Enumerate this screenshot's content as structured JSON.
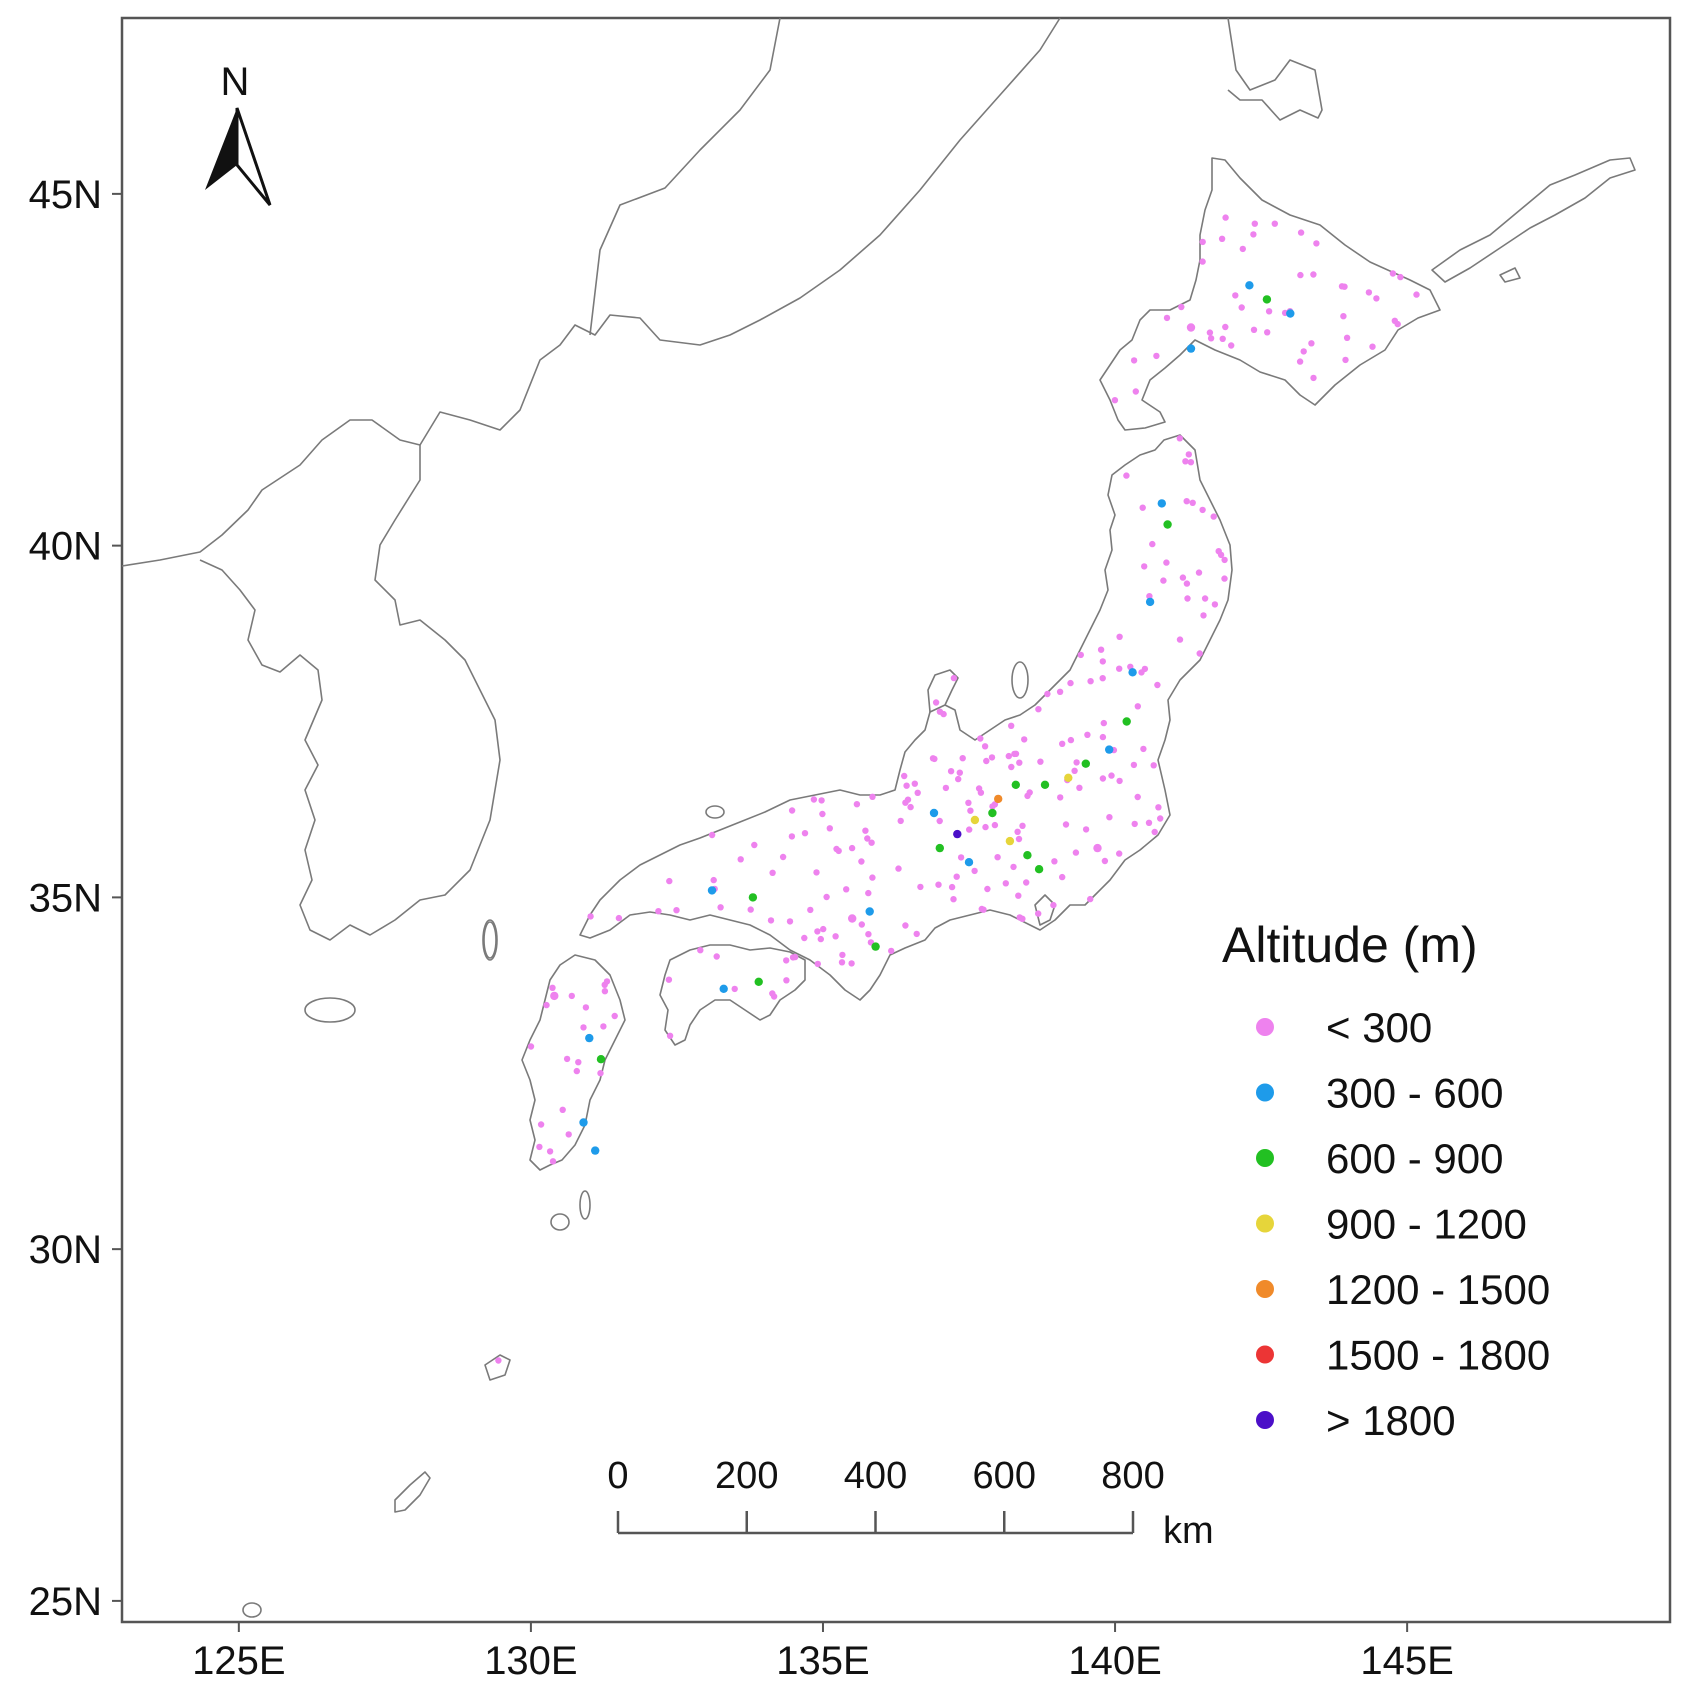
{
  "map": {
    "lon_range": [
      123,
      149.5
    ],
    "lat_range": [
      24.7,
      47.5
    ],
    "x_ticks": [
      {
        "value": 125,
        "label": "125E"
      },
      {
        "value": 130,
        "label": "130E"
      },
      {
        "value": 135,
        "label": "135E"
      },
      {
        "value": 140,
        "label": "140E"
      },
      {
        "value": 145,
        "label": "145E"
      }
    ],
    "y_ticks": [
      {
        "value": 45,
        "label": "45N"
      },
      {
        "value": 40,
        "label": "40N"
      },
      {
        "value": 35,
        "label": "35N"
      },
      {
        "value": 30,
        "label": "30N"
      },
      {
        "value": 25,
        "label": "25N"
      }
    ],
    "north_arrow": {
      "label": "N"
    },
    "scale_bar": {
      "ticks": [
        "0",
        "200",
        "400",
        "600",
        "800"
      ],
      "unit": "km"
    },
    "legend": {
      "title": "Altitude (m)",
      "placement": "right",
      "classes": [
        {
          "label": "< 300",
          "color": "#ee82ee"
        },
        {
          "label": "300 - 600",
          "color": "#1e9bea"
        },
        {
          "label": "600 - 900",
          "color": "#22c022"
        },
        {
          "label": "900 - 1200",
          "color": "#e6d53a"
        },
        {
          "label": "1200 - 1500",
          "color": "#f08a2a"
        },
        {
          "label": "1500 - 1800",
          "color": "#ec3535"
        },
        {
          "label": "> 1800",
          "color": "#4b0fc8"
        }
      ]
    },
    "stations": [
      {
        "lon": 142.3,
        "lat": 43.7,
        "class": 1
      },
      {
        "lon": 142.6,
        "lat": 43.5,
        "class": 2
      },
      {
        "lon": 143.0,
        "lat": 43.3,
        "class": 1
      },
      {
        "lon": 141.3,
        "lat": 42.8,
        "class": 1
      },
      {
        "lon": 140.8,
        "lat": 40.6,
        "class": 1
      },
      {
        "lon": 140.9,
        "lat": 40.3,
        "class": 2
      },
      {
        "lon": 140.6,
        "lat": 39.2,
        "class": 1
      },
      {
        "lon": 140.3,
        "lat": 38.2,
        "class": 1
      },
      {
        "lon": 140.2,
        "lat": 37.5,
        "class": 2
      },
      {
        "lon": 139.9,
        "lat": 37.1,
        "class": 1
      },
      {
        "lon": 139.5,
        "lat": 36.9,
        "class": 2
      },
      {
        "lon": 139.2,
        "lat": 36.7,
        "class": 3
      },
      {
        "lon": 138.8,
        "lat": 36.6,
        "class": 2
      },
      {
        "lon": 138.3,
        "lat": 36.6,
        "class": 2
      },
      {
        "lon": 138.0,
        "lat": 36.4,
        "class": 4
      },
      {
        "lon": 137.9,
        "lat": 36.2,
        "class": 2
      },
      {
        "lon": 137.6,
        "lat": 36.1,
        "class": 3
      },
      {
        "lon": 137.3,
        "lat": 35.9,
        "class": 6
      },
      {
        "lon": 138.2,
        "lat": 35.8,
        "class": 3
      },
      {
        "lon": 138.5,
        "lat": 35.6,
        "class": 2
      },
      {
        "lon": 137.0,
        "lat": 35.7,
        "class": 2
      },
      {
        "lon": 137.5,
        "lat": 35.5,
        "class": 1
      },
      {
        "lon": 138.7,
        "lat": 35.4,
        "class": 2
      },
      {
        "lon": 136.9,
        "lat": 36.2,
        "class": 1
      },
      {
        "lon": 135.8,
        "lat": 34.8,
        "class": 1
      },
      {
        "lon": 135.9,
        "lat": 34.3,
        "class": 2
      },
      {
        "lon": 133.1,
        "lat": 35.1,
        "class": 1
      },
      {
        "lon": 133.8,
        "lat": 35.0,
        "class": 2
      },
      {
        "lon": 133.3,
        "lat": 33.7,
        "class": 1
      },
      {
        "lon": 133.9,
        "lat": 33.8,
        "class": 2
      },
      {
        "lon": 131.0,
        "lat": 33.0,
        "class": 1
      },
      {
        "lon": 131.2,
        "lat": 32.7,
        "class": 2
      },
      {
        "lon": 130.9,
        "lat": 31.8,
        "class": 1
      },
      {
        "lon": 131.1,
        "lat": 31.4,
        "class": 1
      },
      {
        "lon": 139.7,
        "lat": 35.7,
        "class": 0
      },
      {
        "lon": 135.5,
        "lat": 34.7,
        "class": 0
      },
      {
        "lon": 130.4,
        "lat": 33.6,
        "class": 0
      },
      {
        "lon": 141.3,
        "lat": 43.1,
        "class": 0
      }
    ]
  }
}
